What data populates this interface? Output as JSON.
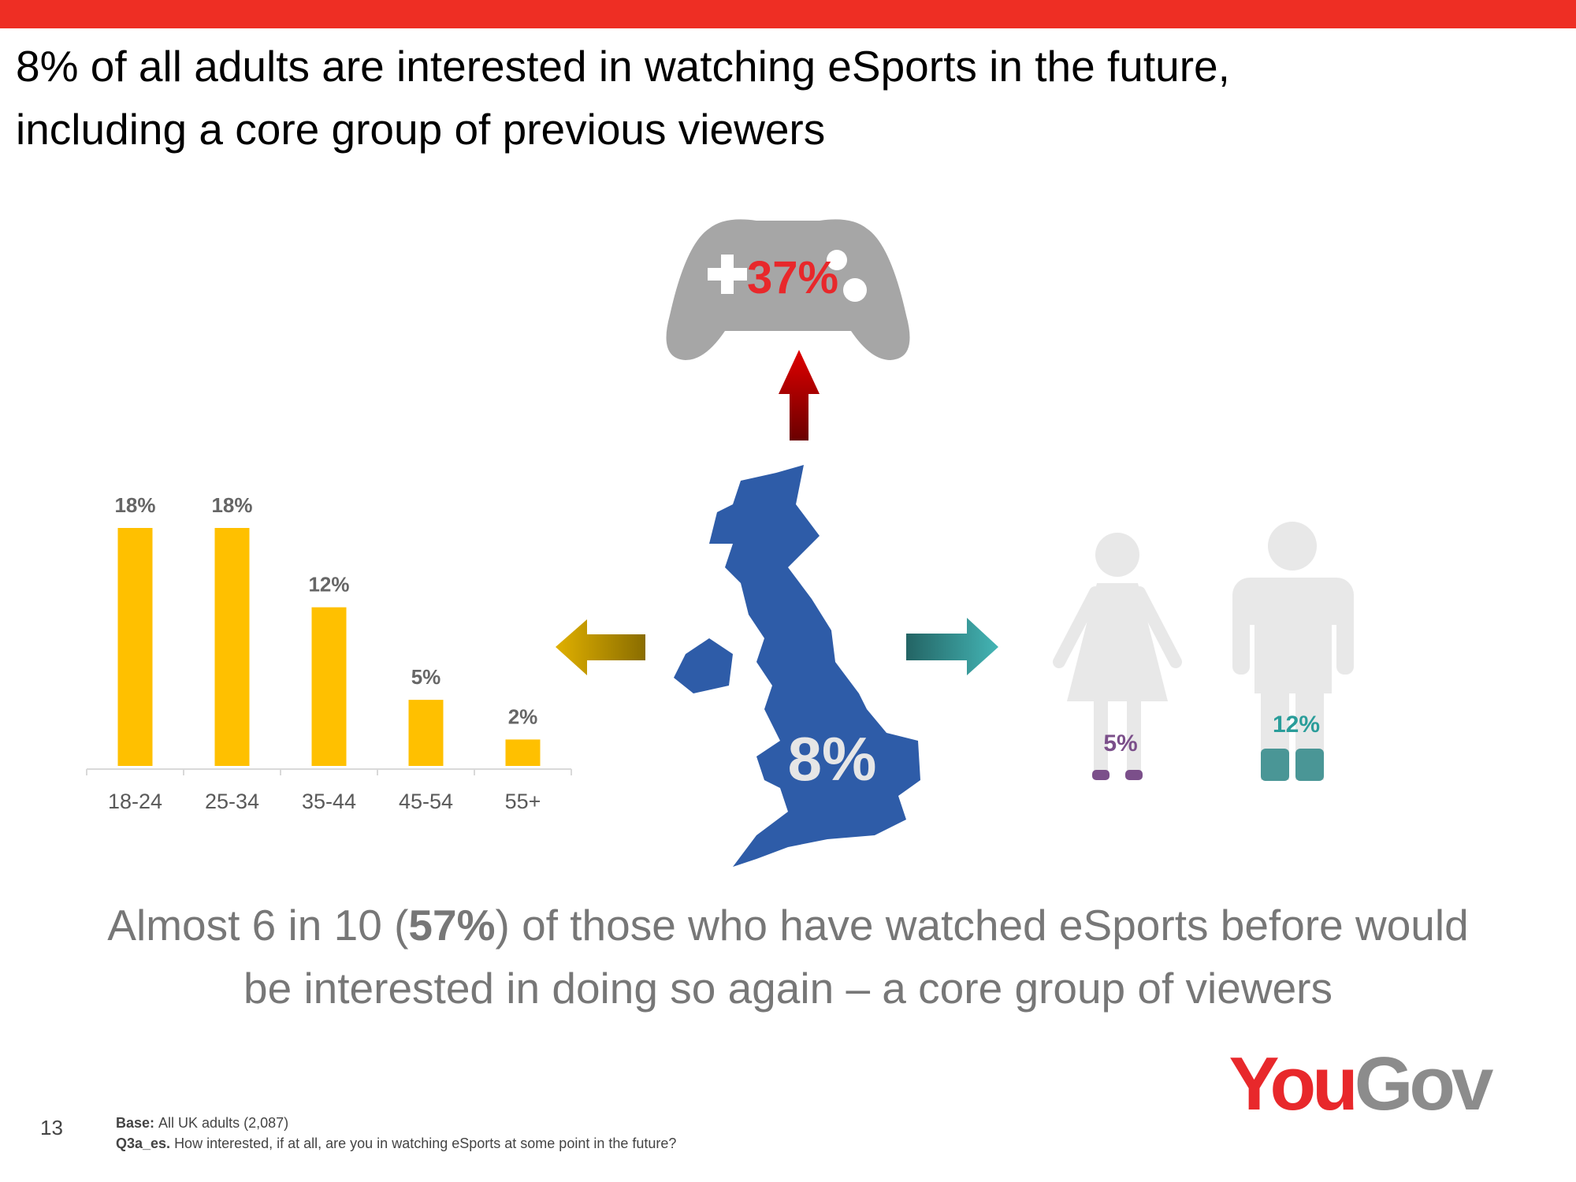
{
  "header": {
    "title_lines": [
      "8% of all adults are interested in watching eSports in the future,",
      "including a core group of previous viewers"
    ]
  },
  "chart_data": {
    "type": "bar",
    "categories": [
      "18-24",
      "25-34",
      "35-44",
      "45-54",
      "55+"
    ],
    "values": [
      18,
      18,
      12,
      5,
      2
    ],
    "value_labels": [
      "18%",
      "18%",
      "12%",
      "5%",
      "2%"
    ],
    "color": "#ffc000"
  },
  "infographic": {
    "controller_label": "37%",
    "map_label": "8%",
    "female_label": "5%",
    "male_label": "12%"
  },
  "takeaway": {
    "line1_start": "Almost 6 in 10 (",
    "line1_bold": "57%",
    "line1_end": ") of those who have watched eSports before would",
    "line2": "be interested in doing so again – a core group of viewers"
  },
  "footer": {
    "page_number": "13",
    "base_label": "Base:",
    "base_text": "All UK adults (2,087)",
    "question_label": "Q3a_es.",
    "question_text": "How interested, if at all, are you in watching eSports at some point in the future?"
  },
  "logo": {
    "you": "You",
    "gov": "Gov"
  }
}
